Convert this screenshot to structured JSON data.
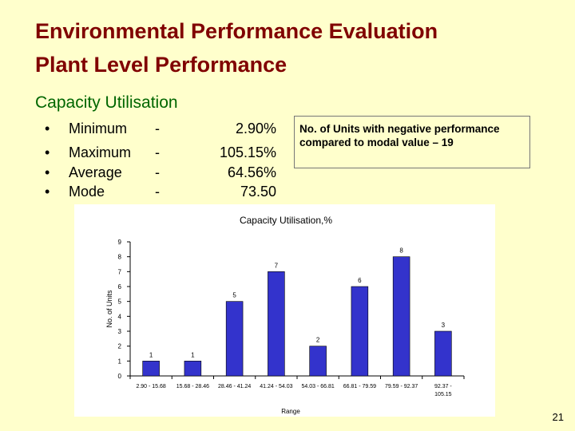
{
  "slide": {
    "title_line1": "Environmental Performance Evaluation",
    "title_line2": "Plant Level Performance",
    "subtitle": "Capacity Utilisation",
    "page_number": "21"
  },
  "stats": [
    {
      "bullet": "•",
      "label": "Minimum",
      "dash": "-",
      "value": "2.90%"
    },
    {
      "bullet": "•",
      "label": "Maximum",
      "dash": "-",
      "value": "105.15%"
    },
    {
      "bullet": "•",
      "label": "Average",
      "dash": "-",
      "value": "64.56%"
    },
    {
      "bullet": "•",
      "label": "Mode",
      "dash": "-",
      "value": "73.50"
    }
  ],
  "note": "No. of Units with negative performance compared to modal value – 19",
  "colors": {
    "background": "#FFFFCC",
    "title": "#800000",
    "subtitle": "#006600",
    "bar_fill": "#3333CC"
  },
  "chart_data": {
    "type": "bar",
    "title": "Capacity Utilisation,%",
    "xlabel": "Range",
    "ylabel": "No. of Units",
    "ylim": [
      0,
      9
    ],
    "yticks": [
      0,
      1,
      2,
      3,
      4,
      5,
      6,
      7,
      8,
      9
    ],
    "grid": false,
    "categories": [
      [
        "2.90 - 15.68"
      ],
      [
        "15.68 - 28.46"
      ],
      [
        "28.46 - 41.24"
      ],
      [
        "41.24 - 54.03"
      ],
      [
        "54.03 - 66.81"
      ],
      [
        "66.81 - 79.59"
      ],
      [
        "79.59 - 92.37"
      ],
      [
        "92.37 -",
        "105.15"
      ]
    ],
    "values": [
      1,
      1,
      5,
      7,
      2,
      6,
      8,
      3
    ]
  }
}
